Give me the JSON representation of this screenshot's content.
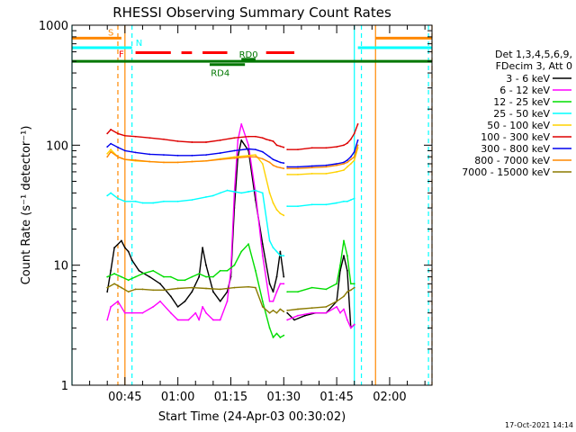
{
  "chart_data": {
    "type": "line",
    "title": "RHESSI Observing Summary Count Rates",
    "xlabel": "Start Time (24-Apr-03 00:30:02)",
    "ylabel": "Count Rate (s⁻¹ detector⁻¹)",
    "yscale": "log",
    "ylim": [
      1,
      1000
    ],
    "xlim_minutes": [
      30,
      132
    ],
    "x_ticks": [
      {
        "minute": 45,
        "label": "00:45"
      },
      {
        "minute": 60,
        "label": "01:00"
      },
      {
        "minute": 75,
        "label": "01:15"
      },
      {
        "minute": 90,
        "label": "01:30"
      },
      {
        "minute": 105,
        "label": "01:45"
      },
      {
        "minute": 120,
        "label": "02:00"
      }
    ],
    "y_ticks": [
      {
        "value": 1,
        "label": "1"
      },
      {
        "value": 10,
        "label": "10"
      },
      {
        "value": 100,
        "label": "100"
      },
      {
        "value": 1000,
        "label": "1000"
      }
    ],
    "legend_header": [
      "Det 1,3,4,5,6,9,",
      "FDecim 3, Att 0"
    ],
    "legend_position": "right",
    "series": [
      {
        "name": "3 - 6 keV",
        "color": "#000000",
        "x": [
          40,
          41,
          42,
          44,
          45,
          46,
          47,
          49,
          52,
          55,
          58,
          60,
          62,
          64,
          66,
          67,
          68,
          70,
          72,
          74,
          75,
          76,
          77,
          78,
          80,
          82,
          84,
          86,
          87,
          88,
          89,
          90
        ],
        "y": [
          6,
          9,
          14,
          16,
          14,
          13,
          11,
          9,
          8,
          7,
          5.5,
          4.5,
          5,
          6,
          8,
          14,
          10,
          6,
          5,
          6,
          8,
          30,
          80,
          110,
          90,
          35,
          15,
          7,
          6,
          8,
          13,
          8
        ]
      },
      {
        "name": "6 - 12 keV",
        "color": "#ff00ff",
        "x": [
          40,
          41,
          43,
          45,
          47,
          50,
          53,
          55,
          58,
          60,
          63,
          65,
          66,
          67,
          68,
          70,
          72,
          74,
          75,
          76,
          77,
          78,
          80,
          82,
          84,
          86,
          87,
          88,
          89,
          90
        ],
        "y": [
          3.5,
          4.5,
          5,
          4,
          4,
          4,
          4.5,
          5,
          4,
          3.5,
          3.5,
          4,
          3.5,
          4.5,
          4,
          3.5,
          3.5,
          5,
          9,
          40,
          110,
          150,
          100,
          40,
          12,
          5,
          5,
          6,
          7,
          7
        ]
      },
      {
        "name": "12 - 25 keV",
        "color": "#00dd00",
        "x": [
          40,
          42,
          44,
          46,
          48,
          50,
          53,
          56,
          58,
          60,
          62,
          64,
          66,
          68,
          70,
          72,
          74,
          76,
          78,
          80,
          82,
          84,
          86,
          87,
          88,
          89,
          90
        ],
        "y": [
          8,
          8.5,
          8,
          7.5,
          8,
          8.5,
          9,
          8,
          8,
          7.5,
          7.5,
          8,
          8.5,
          8,
          8,
          9,
          9,
          10,
          13,
          15,
          9,
          5,
          3,
          2.5,
          2.7,
          2.5,
          2.6
        ]
      },
      {
        "name": "25 - 50 keV",
        "color": "#00ffff",
        "x": [
          40,
          41,
          43,
          45,
          48,
          50,
          53,
          56,
          60,
          64,
          68,
          70,
          72,
          74,
          76,
          78,
          80,
          82,
          84,
          86,
          87,
          88,
          89,
          90
        ],
        "y": [
          38,
          40,
          36,
          34,
          34,
          33,
          33,
          34,
          34,
          35,
          37,
          38,
          40,
          42,
          41,
          40,
          41,
          42,
          40,
          16,
          14,
          13,
          12,
          12
        ]
      },
      {
        "name": "50 - 100 keV",
        "color": "#ffd200",
        "x": [
          40,
          41,
          43,
          45,
          48,
          52,
          56,
          60,
          64,
          68,
          72,
          76,
          80,
          82,
          84,
          86,
          87,
          88,
          89,
          90
        ],
        "y": [
          85,
          92,
          80,
          76,
          74,
          73,
          72,
          72,
          73,
          74,
          77,
          80,
          82,
          83,
          70,
          40,
          33,
          29,
          27,
          26
        ]
      },
      {
        "name": "100 - 300 keV",
        "color": "#dd0000",
        "x": [
          40,
          41,
          43,
          45,
          48,
          52,
          56,
          60,
          64,
          68,
          72,
          76,
          80,
          82,
          84,
          85,
          86,
          87,
          88,
          89,
          90
        ],
        "y": [
          125,
          135,
          125,
          120,
          118,
          115,
          112,
          108,
          106,
          106,
          110,
          115,
          118,
          118,
          115,
          112,
          110,
          108,
          100,
          98,
          96
        ]
      },
      {
        "name": "300 - 800 keV",
        "color": "#0000ee",
        "x": [
          40,
          41,
          43,
          45,
          48,
          52,
          56,
          60,
          64,
          68,
          72,
          76,
          80,
          82,
          84,
          86,
          87,
          88,
          89,
          90
        ],
        "y": [
          97,
          103,
          96,
          90,
          87,
          84,
          83,
          82,
          82,
          83,
          86,
          90,
          93,
          92,
          88,
          80,
          76,
          74,
          72,
          71
        ]
      },
      {
        "name": "800 - 7000 keV",
        "color": "#ff8800",
        "x": [
          40,
          41,
          43,
          45,
          48,
          52,
          56,
          60,
          64,
          68,
          72,
          76,
          80,
          82,
          84,
          86,
          87,
          88,
          89,
          90
        ],
        "y": [
          80,
          88,
          80,
          76,
          75,
          73,
          72,
          72,
          73,
          74,
          76,
          78,
          80,
          80,
          77,
          72,
          68,
          66,
          65,
          64
        ]
      },
      {
        "name": "7000 - 15000 keV",
        "color": "#8b7a00",
        "x": [
          40,
          42,
          44,
          46,
          48,
          50,
          53,
          56,
          60,
          64,
          68,
          72,
          76,
          80,
          82,
          84,
          86,
          87,
          88,
          89,
          90
        ],
        "y": [
          6.5,
          7,
          6.5,
          6,
          6.3,
          6.3,
          6.2,
          6.2,
          6.4,
          6.5,
          6.4,
          6.3,
          6.5,
          6.6,
          6.5,
          4.5,
          4,
          4.2,
          4,
          4.3,
          4.1
        ]
      }
    ],
    "series_after_gap": [
      {
        "x": [
          91,
          93,
          96,
          99,
          102,
          105,
          106,
          107,
          108,
          109,
          110
        ],
        "y": [
          4,
          3.5,
          3.8,
          4,
          4,
          5,
          9,
          12,
          9,
          3,
          3.2
        ],
        "color": "#000000"
      },
      {
        "x": [
          91,
          94,
          98,
          102,
          105,
          106,
          107,
          108,
          109,
          110
        ],
        "y": [
          3.5,
          3.8,
          4,
          4,
          4.5,
          4,
          4.3,
          3.5,
          3,
          3.2
        ],
        "color": "#ff00ff"
      },
      {
        "x": [
          91,
          94,
          98,
          102,
          105,
          106,
          107,
          108,
          109,
          110
        ],
        "y": [
          6,
          6,
          6.5,
          6.3,
          7,
          10,
          16,
          12,
          7,
          7
        ],
        "color": "#00dd00"
      },
      {
        "x": [
          91,
          94,
          98,
          102,
          105,
          107,
          108,
          109,
          110
        ],
        "y": [
          31,
          31,
          32,
          32,
          33,
          34,
          34,
          35,
          36
        ],
        "color": "#00ffff"
      },
      {
        "x": [
          91,
          94,
          98,
          102,
          105,
          107,
          108,
          109,
          110,
          111
        ],
        "y": [
          57,
          57,
          58,
          58,
          60,
          62,
          66,
          70,
          75,
          95
        ],
        "color": "#ffd200"
      },
      {
        "x": [
          91,
          94,
          98,
          102,
          105,
          107,
          108,
          109,
          110,
          111
        ],
        "y": [
          92,
          92,
          95,
          95,
          97,
          100,
          104,
          112,
          125,
          150
        ],
        "color": "#dd0000"
      },
      {
        "x": [
          91,
          94,
          98,
          102,
          105,
          107,
          108,
          109,
          110,
          111
        ],
        "y": [
          66,
          66,
          67,
          68,
          70,
          72,
          75,
          80,
          88,
          110
        ],
        "color": "#0000ee"
      },
      {
        "x": [
          91,
          94,
          98,
          102,
          105,
          107,
          108,
          109,
          110,
          111
        ],
        "y": [
          64,
          64,
          65,
          66,
          68,
          70,
          72,
          76,
          80,
          100
        ],
        "color": "#ff8800"
      },
      {
        "x": [
          91,
          94,
          98,
          102,
          105,
          107,
          108,
          109,
          110
        ],
        "y": [
          4.2,
          4.3,
          4.4,
          4.5,
          5,
          5.5,
          6,
          6.2,
          6.5
        ],
        "color": "#8b7a00"
      }
    ],
    "annotations": [
      {
        "label": "S",
        "color": "#ff8800"
      },
      {
        "label": "N",
        "color": "#00ffff"
      },
      {
        "label": "F",
        "color": "#ff0000"
      },
      {
        "label": "RD0",
        "color": "#007700"
      },
      {
        "label": "RD4",
        "color": "#007700"
      }
    ],
    "flag_bars": {
      "S": [
        [
          30,
          44
        ],
        [
          116,
          132
        ]
      ],
      "N": [
        [
          30,
          47
        ],
        [
          111,
          132
        ]
      ],
      "F": [
        [
          48,
          58
        ],
        [
          61,
          64
        ],
        [
          67,
          74
        ],
        [
          85,
          93
        ]
      ],
      "green_full": [
        30,
        132
      ],
      "RD0": [
        78,
        82
      ],
      "RD4": [
        69,
        79
      ]
    },
    "vertical_lines": [
      {
        "minute": 43,
        "color": "#ff8800",
        "style": "dashed"
      },
      {
        "minute": 45,
        "color": "#ff8800",
        "style": "solid"
      },
      {
        "minute": 47,
        "color": "#00ffff",
        "style": "dashed"
      },
      {
        "minute": 30,
        "color": "#00ffff",
        "style": "solid"
      },
      {
        "minute": 110,
        "color": "#00ffff",
        "style": "solid"
      },
      {
        "minute": 112,
        "color": "#00ffff",
        "style": "dashed"
      },
      {
        "minute": 116,
        "color": "#ff8800",
        "style": "solid"
      },
      {
        "minute": 131,
        "color": "#00ffff",
        "style": "dashed"
      },
      {
        "minute": 132,
        "color": "#ff8800",
        "style": "dashed"
      }
    ],
    "footer": "17-Oct-2021 14:14"
  }
}
